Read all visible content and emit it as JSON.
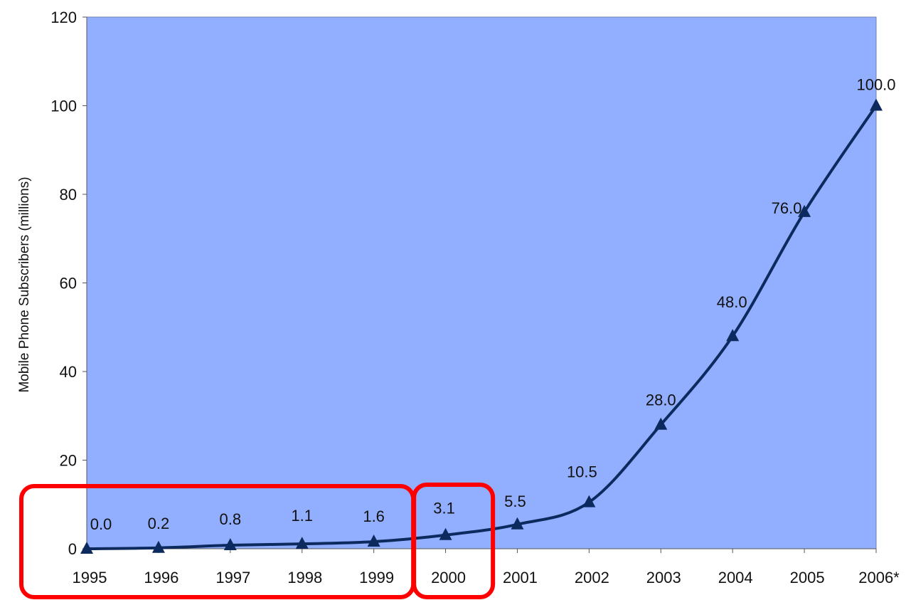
{
  "chart_data": {
    "type": "line",
    "title": "",
    "xlabel": "",
    "ylabel": "Mobile Phone Subscribers (millions)",
    "categories": [
      "1995",
      "1996",
      "1997",
      "1998",
      "1999",
      "2000",
      "2001",
      "2002",
      "2003",
      "2004",
      "2005",
      "2006*"
    ],
    "series": [
      {
        "values": [
          0.0,
          0.2,
          0.8,
          1.1,
          1.6,
          3.1,
          5.5,
          10.5,
          28.0,
          48.0,
          76.0,
          100.0
        ],
        "data_labels": [
          "0.0",
          "0.2",
          "0.8",
          "1.1",
          "1.6",
          "3.1",
          "5.5",
          "10.5",
          "28.0",
          "48.0",
          "76.0",
          "100.0"
        ]
      }
    ],
    "ylim": [
      0,
      120
    ],
    "yticks": [
      0,
      20,
      40,
      60,
      80,
      100,
      120
    ],
    "grid": false,
    "marker": "triangle",
    "colors": {
      "plot_background": "#92aeff",
      "line": "#0d2a5e",
      "highlight_box": "#ff0000"
    },
    "annotations": [
      {
        "type": "highlight-box",
        "spans_categories": [
          "1995",
          "1999"
        ]
      },
      {
        "type": "highlight-box",
        "spans_categories": [
          "2000"
        ]
      }
    ]
  }
}
